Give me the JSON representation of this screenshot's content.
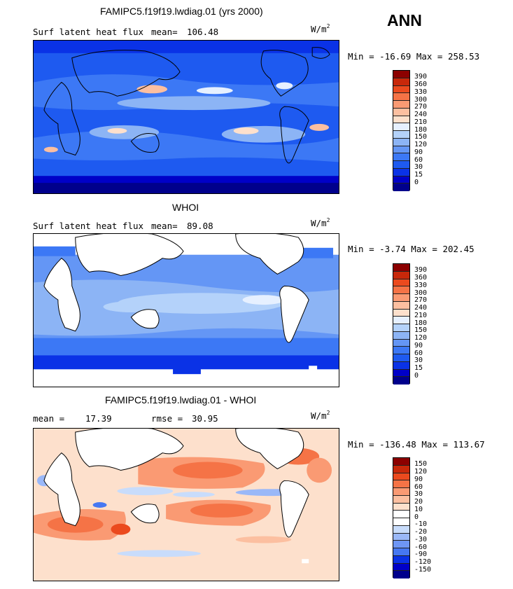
{
  "season": "ANN",
  "colors": {
    "abs_scale": [
      "#00008c",
      "#0000c8",
      "#0a32e6",
      "#1e5af0",
      "#3c78f5",
      "#6496f5",
      "#8cb4f5",
      "#b4d2fa",
      "#e6f0ff",
      "#fde0cc",
      "#fcbfa0",
      "#fa9a73",
      "#f57346",
      "#eb4a1e",
      "#c8280a",
      "#8c0000"
    ],
    "diff_scale": [
      "#00008c",
      "#0000c8",
      "#0a32e6",
      "#2855ee",
      "#4678f2",
      "#6e96f5",
      "#9ab8f8",
      "#c8dcfb",
      "#ffffff",
      "#fde0cc",
      "#fcbfa0",
      "#fa9a73",
      "#f57346",
      "#eb4a1e",
      "#c8280a",
      "#8c0000"
    ]
  },
  "panels": [
    {
      "title": "FAMIPC5.f19f19.lwdiag.01 (yrs 2000)",
      "field": "Surf latent heat flux",
      "mean_label": "mean=",
      "mean": "106.48",
      "unit_base": "W/m",
      "unit_exp": "2",
      "minmax": "Min = -16.69 Max = 258.53",
      "levels": [
        "390",
        "360",
        "330",
        "300",
        "270",
        "240",
        "210",
        "180",
        "150",
        "120",
        "90",
        "60",
        "30",
        "15",
        "0"
      ]
    },
    {
      "title": "WHOI",
      "field": "Surf latent heat flux",
      "mean_label": "mean=",
      "mean": " 89.08",
      "unit_base": "W/m",
      "unit_exp": "2",
      "minmax": "Min =  -3.74 Max = 202.45",
      "levels": [
        "390",
        "360",
        "330",
        "300",
        "270",
        "240",
        "210",
        "180",
        "150",
        "120",
        "90",
        "60",
        "30",
        "15",
        "0"
      ]
    },
    {
      "title": "FAMIPC5.f19f19.lwdiag.01 - WHOI",
      "mean_label": "mean =",
      "mean": "17.39",
      "rmse_label": "rmse =",
      "rmse": "30.95",
      "unit_base": "W/m",
      "unit_exp": "2",
      "minmax": "Min = -136.48 Max = 113.67",
      "levels": [
        "150",
        "120",
        "90",
        "60",
        "30",
        "20",
        "10",
        "0",
        "-10",
        "-20",
        "-30",
        "-60",
        "-90",
        "-120",
        "-150"
      ]
    }
  ]
}
